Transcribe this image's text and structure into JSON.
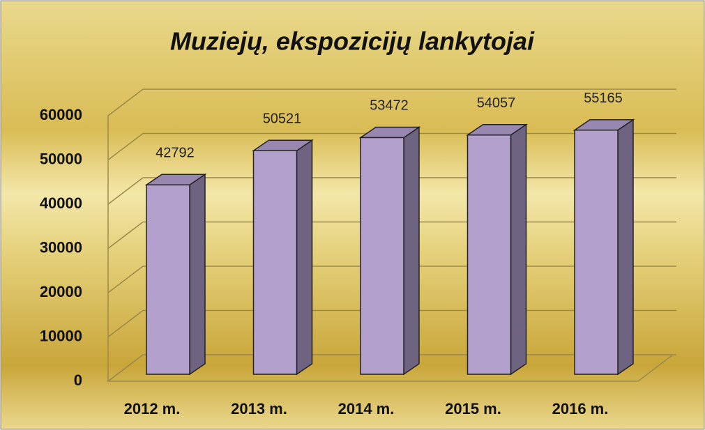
{
  "chart_data": {
    "type": "bar3d",
    "title": "Muziejų, ekspozicijų lankytojai",
    "categories": [
      "2012 m.",
      "2013 m.",
      "2014 m.",
      "2015 m.",
      "2016 m."
    ],
    "values": [
      42792,
      50521,
      53472,
      54057,
      55165
    ],
    "color": "#b3a0cc",
    "ylim": [
      0,
      60000
    ],
    "yticks": [
      0,
      10000,
      20000,
      30000,
      40000,
      50000,
      60000
    ],
    "grid": true
  }
}
